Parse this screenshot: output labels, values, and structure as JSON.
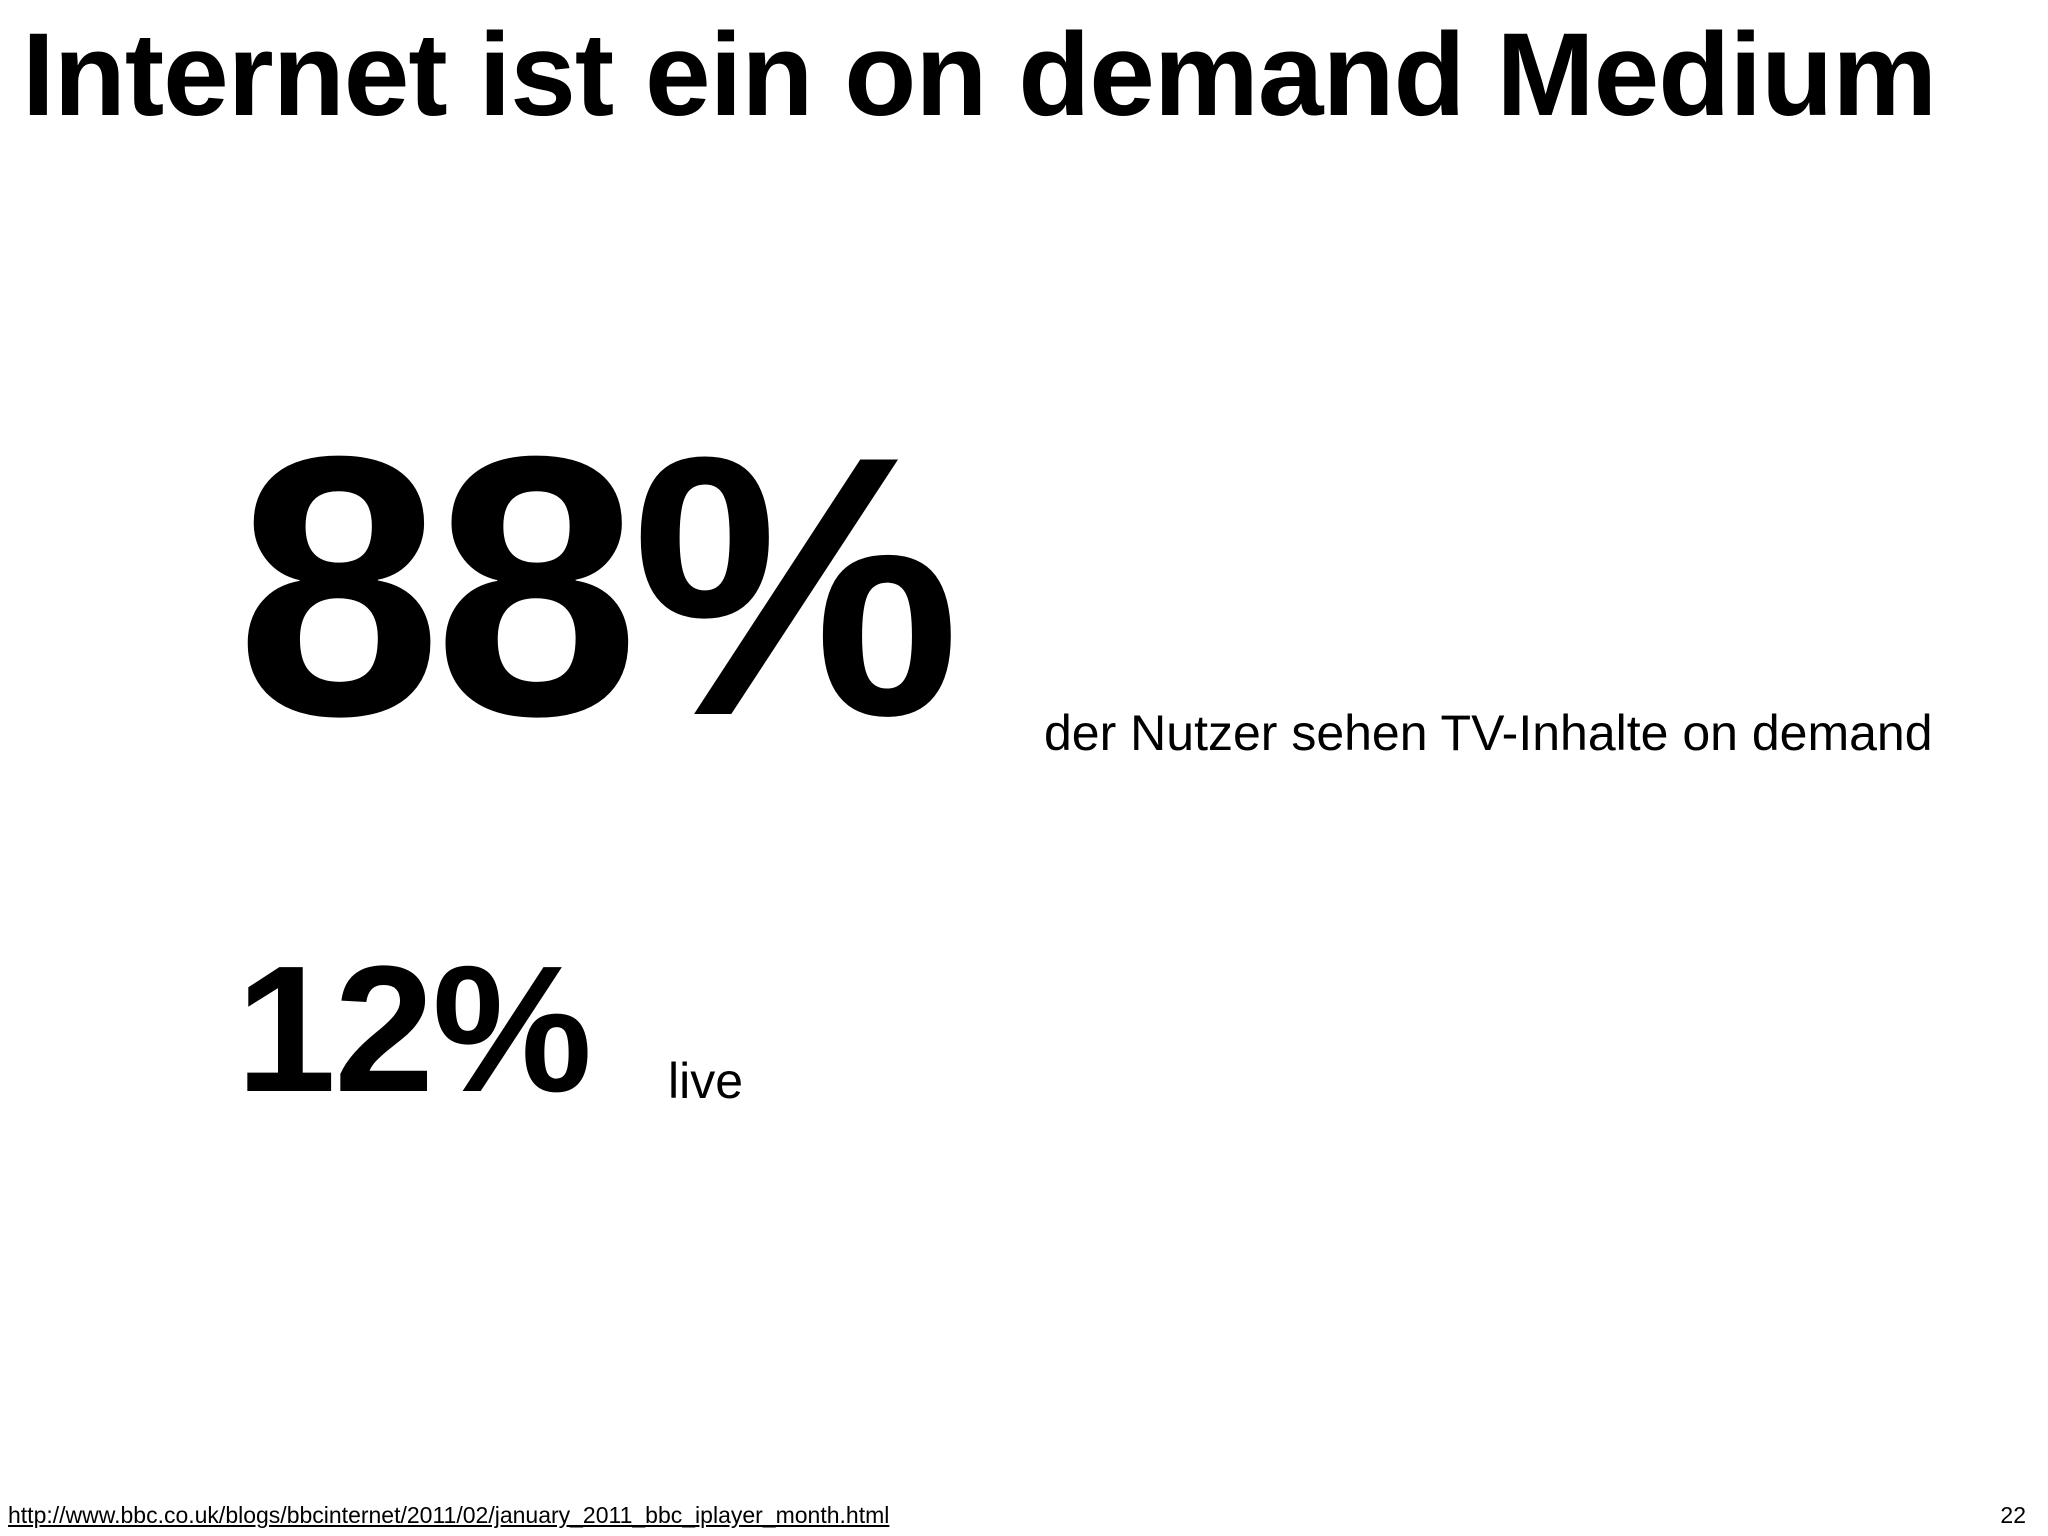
{
  "slide": {
    "title": "Internet ist ein on demand Medium",
    "stats": [
      {
        "value": "88%",
        "label": "der Nutzer sehen TV-Inhalte on demand"
      },
      {
        "value": "12%",
        "label": "live"
      }
    ],
    "source_url": "http://www.bbc.co.uk/blogs/bbcinternet/2011/02/january_2011_bbc_iplayer_month.html",
    "page_number": "22"
  }
}
